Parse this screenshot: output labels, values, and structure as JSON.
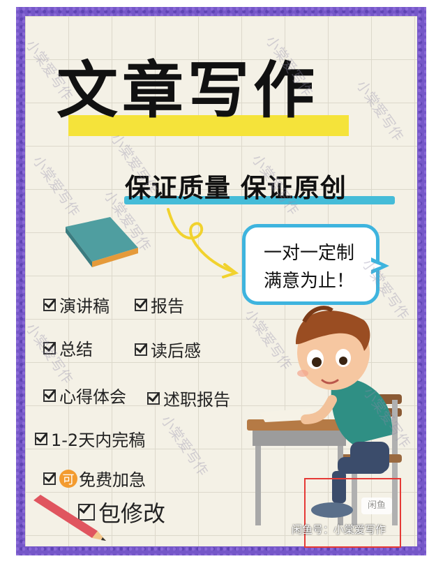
{
  "poster": {
    "title": "文章写作",
    "subtitle": "保证质量 保证原创",
    "bubble_line1": "一对一定制",
    "bubble_line2": "满意为止！"
  },
  "features": [
    "演讲稿",
    "报告",
    "总结",
    "读后感",
    "心得体会",
    "述职报告",
    "1-2天内完稿",
    "免费加急",
    "包修改"
  ],
  "badge_text": "可",
  "watermark_text": "小棠爱写作",
  "corner": {
    "logo_text": "闲鱼",
    "caption": "闲鱼号：小棠爱写作"
  },
  "colors": {
    "frame": "#7557c8",
    "title_highlight": "#f5e33a",
    "subtitle_underline": "#45bcd8",
    "bubble_border": "#3eb4de",
    "badge": "#f39b2f"
  }
}
